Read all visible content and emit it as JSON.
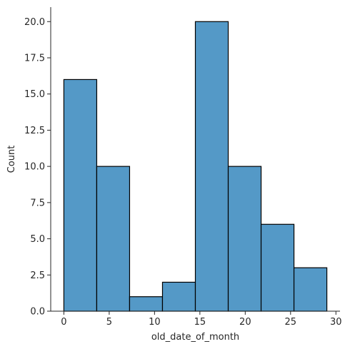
{
  "chart_data": {
    "type": "bar",
    "subtype": "histogram",
    "title": "",
    "xlabel": "old_date_of_month",
    "ylabel": "Count",
    "bin_edges": [
      0,
      3.625,
      7.25,
      10.875,
      14.5,
      18.125,
      21.75,
      25.375,
      29
    ],
    "values": [
      16,
      10,
      1,
      2,
      20,
      10,
      6,
      3
    ],
    "xlim": [
      -1.45,
      30.45
    ],
    "ylim": [
      0,
      21
    ],
    "xticks": [
      0,
      5,
      10,
      15,
      20,
      25,
      30
    ],
    "yticks": [
      0.0,
      2.5,
      5.0,
      7.5,
      10.0,
      12.5,
      15.0,
      17.5,
      20.0
    ],
    "xtick_labels": [
      "0",
      "5",
      "10",
      "15",
      "20",
      "25",
      "30"
    ],
    "ytick_labels": [
      "0.0",
      "2.5",
      "5.0",
      "7.5",
      "10.0",
      "12.5",
      "15.0",
      "17.5",
      "20.0"
    ],
    "bar_color": "#5499c7",
    "edge_color": "#000000",
    "grid": false
  }
}
